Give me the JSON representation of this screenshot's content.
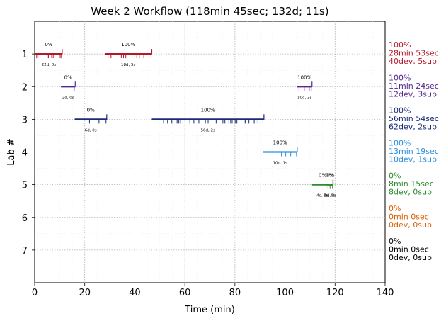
{
  "chart_data": {
    "type": "timeline",
    "title": "Week 2 Workflow (118min 45sec; 132d; 11s)",
    "xlabel": "Time (min)",
    "ylabel": "Lab #",
    "xlim": [
      0,
      140
    ],
    "ylim": [
      8,
      0
    ],
    "xticks": [
      0,
      20,
      40,
      60,
      80,
      100,
      120,
      140
    ],
    "yticks": [
      1,
      2,
      3,
      4,
      5,
      6,
      7
    ],
    "grid": true,
    "labs": [
      {
        "lab": 1,
        "color": "#b2182b",
        "summary": [
          "100%",
          "28min 53sec",
          "40dev, 5sub"
        ],
        "segments": [
          {
            "start": 0.3,
            "end": 11,
            "pct": "0%",
            "count": "22d, 0s",
            "ticks": [
              0.8,
              1.3,
              5,
              5.5,
              6.8,
              7.4,
              10.2,
              10.7
            ]
          },
          {
            "start": 28,
            "end": 46.8,
            "pct": "100%",
            "count": "18d, 5s",
            "ticks": [
              29.3,
              30.5,
              34.6,
              35.5,
              36.4,
              38.9,
              40.0,
              40.8,
              41.8,
              43.6,
              46.5
            ]
          }
        ]
      },
      {
        "lab": 2,
        "color": "#54278f",
        "summary": [
          "100%",
          "11min 24sec",
          "12dev, 3sub"
        ],
        "segments": [
          {
            "start": 10.5,
            "end": 16.2,
            "pct": "0%",
            "count": "2d, 0s",
            "ticks": [
              15.8
            ]
          },
          {
            "start": 104.8,
            "end": 110.8,
            "pct": "100%",
            "count": "10d, 3s",
            "ticks": [
              105.6,
              107.7,
              109.7,
              110.5
            ]
          }
        ]
      },
      {
        "lab": 3,
        "color": "#1b2a7a",
        "summary": [
          "100%",
          "56min 54sec",
          "62dev, 2sub"
        ],
        "segments": [
          {
            "start": 16,
            "end": 28.8,
            "pct": "0%",
            "count": "6d, 0s",
            "ticks": [
              21.9,
              25.7,
              28.5
            ]
          },
          {
            "start": 46.8,
            "end": 91.6,
            "pct": "100%",
            "count": "56d, 2s",
            "ticks": [
              51.5,
              53.1,
              54.8,
              56.9,
              57.6,
              58.3,
              62.0,
              63.6,
              65.6,
              68.2,
              69.3,
              72.5,
              75.2,
              76.0,
              77.6,
              78.3,
              78.9,
              80.1,
              80.8,
              83.6,
              84.1,
              85.6,
              87.7,
              88.4,
              89.2,
              91.2
            ]
          }
        ]
      },
      {
        "lab": 4,
        "color": "#2b8fe0",
        "summary": [
          "100%",
          "13min 19sec",
          "10dev, 1sub"
        ],
        "segments": [
          {
            "start": 91.2,
            "end": 104.9,
            "pct": "100%",
            "count": "10d, 1s",
            "ticks": [
              98.6,
              100.3,
              102.3,
              104.6
            ]
          }
        ]
      },
      {
        "lab": 5,
        "color": "#2e8b2e",
        "summary": [
          "0%",
          "8min 15sec",
          "8dev, 0sub"
        ],
        "segments": [
          {
            "start": 110.8,
            "end": 119.2,
            "pct": "0%",
            "count": "4d, 0s",
            "ticks": [
              116.4,
              117.2
            ]
          },
          {
            "start": 116.4,
            "end": 119.2,
            "pct": "0%",
            "count": "2d, 0s",
            "ticks": [
              118.0
            ]
          },
          {
            "start": 117.2,
            "end": 119.2,
            "pct": "0%",
            "count": "2d, 0s",
            "ticks": [
              119.0
            ]
          }
        ]
      },
      {
        "lab": 6,
        "color": "#d95f02",
        "summary": [
          "0%",
          "0min 0sec",
          "0dev, 0sub"
        ],
        "segments": []
      },
      {
        "lab": 7,
        "color": "#000000",
        "summary": [
          "0%",
          "0min 0sec",
          "0dev, 0sub"
        ],
        "segments": []
      }
    ]
  }
}
